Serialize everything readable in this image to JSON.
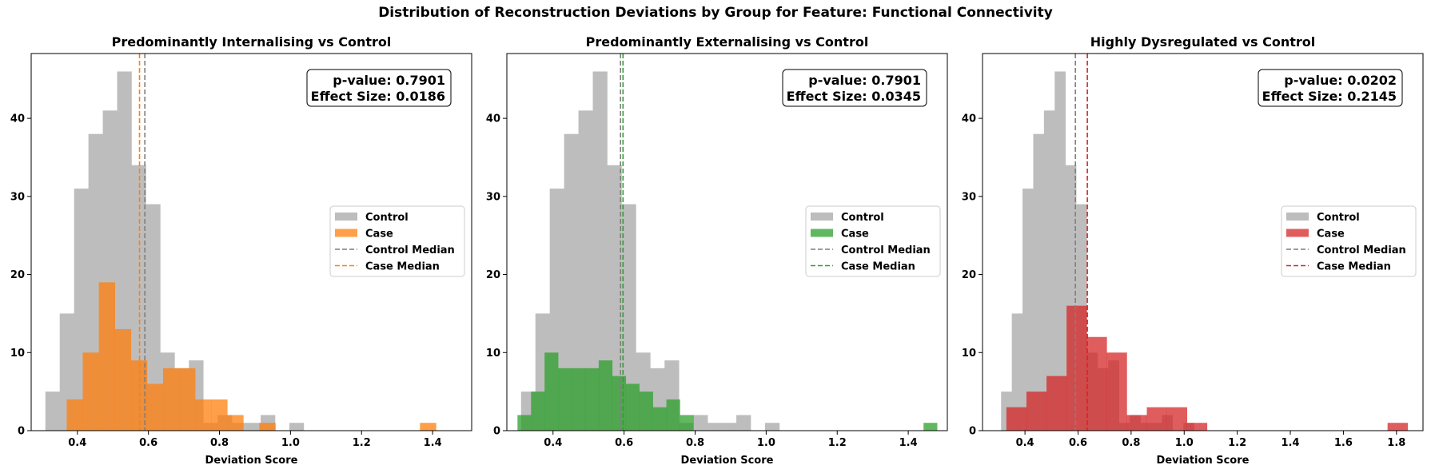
{
  "suptitle": "Distribution of Reconstruction Deviations by Group for Feature: Functional Connectivity",
  "colors": {
    "control": "#bdbdbd",
    "control_median": "#7f7f7f",
    "grid_frame": "#000000"
  },
  "chart_data": [
    {
      "type": "histogram",
      "title": "Predominantly Internalising vs Control",
      "xlabel": "Deviation Score",
      "ylabel": "",
      "xlim": [
        0.27,
        1.51
      ],
      "ylim": [
        0,
        48.3
      ],
      "xticks": [
        0.4,
        0.6,
        0.8,
        1.0,
        1.2,
        1.4
      ],
      "xtick_labels": [
        "0.4",
        "0.6",
        "0.8",
        "1.0",
        "1.2",
        "1.4"
      ],
      "yticks": [
        0,
        10,
        20,
        30,
        40
      ],
      "grid": false,
      "legend_position": "center-right",
      "legend": [
        "Control",
        "Case",
        "Control Median",
        "Case Median"
      ],
      "annotation": [
        "p-value: 0.7901",
        "Effect Size: 0.0186"
      ],
      "case_color": "#ff7f0e",
      "control_median": 0.59,
      "case_median": 0.575,
      "control_bins": [
        [
          0.31,
          5
        ],
        [
          0.35,
          15
        ],
        [
          0.39,
          31
        ],
        [
          0.43,
          38
        ],
        [
          0.47,
          41
        ],
        [
          0.51,
          46
        ],
        [
          0.55,
          34
        ],
        [
          0.59,
          29
        ],
        [
          0.63,
          10
        ],
        [
          0.67,
          8
        ],
        [
          0.71,
          9
        ],
        [
          0.75,
          1
        ],
        [
          0.79,
          2
        ],
        [
          0.83,
          1
        ],
        [
          0.87,
          1
        ],
        [
          0.91,
          2
        ],
        [
          0.95,
          0
        ],
        [
          0.99,
          1
        ],
        [
          1.03,
          0
        ],
        [
          1.07,
          0
        ],
        [
          1.11,
          0
        ]
      ],
      "control_edges_start": 0.31,
      "control_bin_width": 0.0404,
      "control_heights": [
        5,
        15,
        31,
        38,
        41,
        46,
        34,
        29,
        10,
        8,
        9,
        1,
        2,
        1,
        1,
        2,
        0,
        1,
        0,
        0,
        0,
        0,
        0,
        0,
        0,
        0,
        0
      ],
      "case_edges_start": 0.37,
      "case_bin_width": 0.0452,
      "case_heights": [
        4,
        10,
        19,
        13,
        9,
        6,
        8,
        8,
        4,
        4,
        2,
        0,
        1,
        0,
        0,
        0,
        0,
        0,
        0,
        0,
        0,
        0,
        1
      ]
    },
    {
      "type": "histogram",
      "title": "Predominantly Externalising vs Control",
      "xlabel": "Deviation Score",
      "ylabel": "",
      "xlim": [
        0.27,
        1.51
      ],
      "ylim": [
        0,
        48.3
      ],
      "xticks": [
        0.4,
        0.6,
        0.8,
        1.0,
        1.2,
        1.4
      ],
      "xtick_labels": [
        "0.4",
        "0.6",
        "0.8",
        "1.0",
        "1.2",
        "1.4"
      ],
      "yticks": [
        0,
        10,
        20,
        30,
        40
      ],
      "grid": false,
      "legend_position": "center-right",
      "legend": [
        "Control",
        "Case",
        "Control Median",
        "Case Median"
      ],
      "annotation": [
        "p-value: 0.7901",
        "Effect Size: 0.0345"
      ],
      "case_color": "#2ca02c",
      "control_median": 0.59,
      "case_median": 0.597,
      "control_edges_start": 0.31,
      "control_bin_width": 0.0404,
      "control_heights": [
        5,
        15,
        31,
        38,
        41,
        46,
        34,
        29,
        10,
        8,
        9,
        1,
        2,
        1,
        1,
        2,
        0,
        1,
        0,
        0,
        0,
        0,
        0,
        0,
        0,
        0,
        0
      ],
      "case_edges_start": 0.3,
      "case_bin_width": 0.0381,
      "case_heights": [
        2,
        5,
        10,
        8,
        8,
        8,
        9,
        7,
        6,
        5,
        3,
        4,
        2,
        0,
        0,
        0,
        0,
        0,
        0,
        0,
        0,
        0,
        0,
        0,
        0,
        0,
        0,
        0,
        0,
        0,
        1
      ]
    },
    {
      "type": "histogram",
      "title": "Highly Dysregulated vs Control",
      "xlabel": "Deviation Score",
      "ylabel": "",
      "xlim": [
        0.24,
        1.9
      ],
      "ylim": [
        0,
        48.3
      ],
      "xticks": [
        0.4,
        0.6,
        0.8,
        1.0,
        1.2,
        1.4,
        1.6,
        1.8
      ],
      "xtick_labels": [
        "0.4",
        "0.6",
        "0.8",
        "1.0",
        "1.2",
        "1.4",
        "1.6",
        "1.8"
      ],
      "yticks": [
        0,
        10,
        20,
        30,
        40
      ],
      "grid": false,
      "legend_position": "center-right",
      "legend": [
        "Control",
        "Case",
        "Control Median",
        "Case Median"
      ],
      "annotation": [
        "p-value: 0.0202",
        "Effect Size: 0.2145"
      ],
      "case_color": "#d62728",
      "control_median": 0.59,
      "case_median": 0.635,
      "control_edges_start": 0.31,
      "control_bin_width": 0.0404,
      "control_heights": [
        5,
        15,
        31,
        38,
        41,
        46,
        34,
        29,
        10,
        8,
        9,
        1,
        2,
        1,
        1,
        2,
        0,
        1,
        0,
        0,
        0,
        0,
        0,
        0,
        0,
        0,
        0
      ],
      "case_edges_start": 0.33,
      "case_bin_width": 0.0756,
      "case_heights": [
        3,
        5,
        7,
        16,
        12,
        10,
        2,
        3,
        3,
        1,
        0,
        0,
        0,
        0,
        0,
        0,
        0,
        0,
        0,
        1
      ]
    }
  ]
}
